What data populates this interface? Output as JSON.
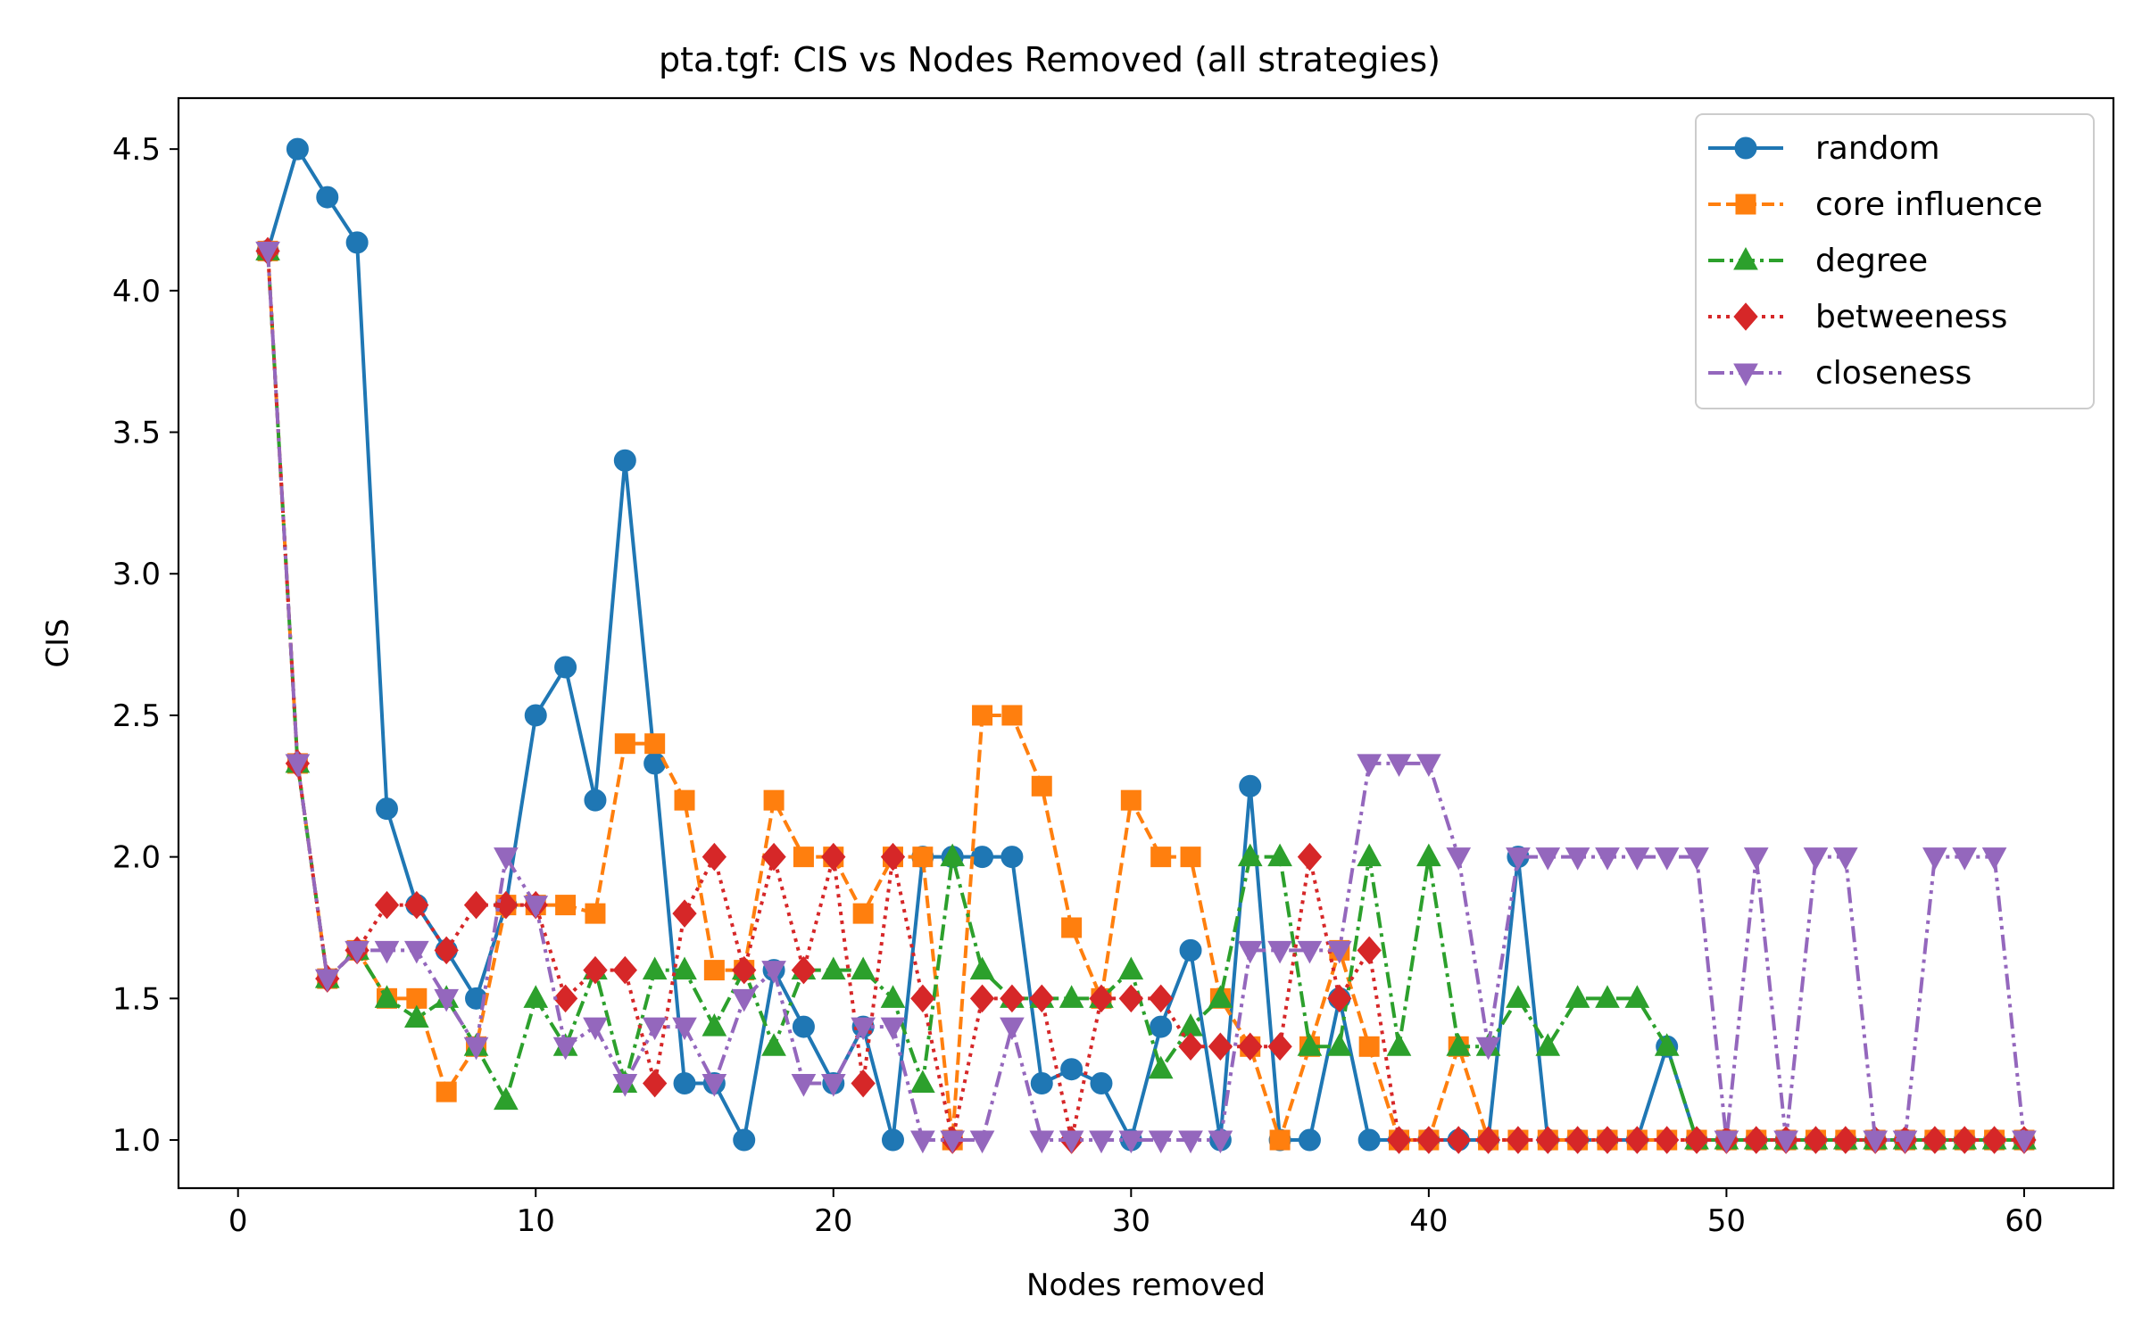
{
  "chart_data": {
    "type": "line",
    "title": "pta.tgf: CIS vs Nodes Removed (all strategies)",
    "xlabel": "Nodes removed",
    "ylabel": "CIS",
    "xlim": [
      -2,
      63
    ],
    "ylim": [
      0.83,
      4.68
    ],
    "xticks": [
      0,
      10,
      20,
      30,
      40,
      50,
      60
    ],
    "yticks": [
      1.0,
      1.5,
      2.0,
      2.5,
      3.0,
      3.5,
      4.0,
      4.5
    ],
    "ytick_labels": [
      "1.0",
      "1.5",
      "2.0",
      "2.5",
      "3.0",
      "3.5",
      "4.0",
      "4.5"
    ],
    "grid": false,
    "legend_position": "top-right",
    "x": [
      1,
      2,
      3,
      4,
      5,
      6,
      7,
      8,
      9,
      10,
      11,
      12,
      13,
      14,
      15,
      16,
      17,
      18,
      19,
      20,
      21,
      22,
      23,
      24,
      25,
      26,
      27,
      28,
      29,
      30,
      31,
      32,
      33,
      34,
      35,
      36,
      37,
      38,
      39,
      40,
      41,
      42,
      43,
      44,
      45,
      46,
      47,
      48,
      49,
      50,
      51,
      52,
      53,
      54,
      55,
      56,
      57,
      58,
      59,
      60
    ],
    "series": [
      {
        "name": "random",
        "color": "#1f77b4",
        "marker": "circle",
        "dash": "solid",
        "values": [
          4.14,
          4.5,
          4.33,
          4.17,
          2.17,
          1.83,
          1.67,
          1.5,
          1.83,
          2.5,
          2.67,
          2.2,
          3.4,
          2.33,
          1.2,
          1.2,
          1.0,
          1.6,
          1.4,
          1.2,
          1.4,
          1.0,
          2.0,
          2.0,
          2.0,
          2.0,
          1.2,
          1.25,
          1.2,
          1.0,
          1.4,
          1.67,
          1.0,
          2.25,
          1.0,
          1.0,
          1.5,
          1.0,
          1.0,
          1.0,
          1.0,
          1.0,
          2.0,
          1.0,
          1.0,
          1.0,
          1.0,
          1.33,
          1.0,
          1.0,
          1.0,
          1.0,
          1.0,
          1.0,
          1.0,
          1.0,
          1.0,
          1.0,
          1.0,
          1.0
        ]
      },
      {
        "name": "core influence",
        "color": "#ff7f0e",
        "marker": "square",
        "dash": "dashed",
        "values": [
          4.14,
          2.33,
          1.57,
          1.67,
          1.5,
          1.5,
          1.17,
          1.33,
          1.83,
          1.83,
          1.83,
          1.8,
          2.4,
          2.4,
          2.2,
          1.6,
          1.6,
          2.2,
          2.0,
          2.0,
          1.8,
          2.0,
          2.0,
          1.0,
          2.5,
          2.5,
          2.25,
          1.75,
          1.5,
          2.2,
          2.0,
          2.0,
          1.5,
          1.33,
          1.0,
          1.33,
          1.67,
          1.33,
          1.0,
          1.0,
          1.33,
          1.0,
          1.0,
          1.0,
          1.0,
          1.0,
          1.0,
          1.0,
          1.0,
          1.0,
          1.0,
          1.0,
          1.0,
          1.0,
          1.0,
          1.0,
          1.0,
          1.0,
          1.0,
          1.0
        ]
      },
      {
        "name": "degree",
        "color": "#2ca02c",
        "marker": "triangle-up",
        "dash": "dashdot",
        "values": [
          4.14,
          2.33,
          1.57,
          1.67,
          1.5,
          1.43,
          1.5,
          1.33,
          1.14,
          1.5,
          1.33,
          1.6,
          1.2,
          1.6,
          1.6,
          1.4,
          1.6,
          1.33,
          1.6,
          1.6,
          1.6,
          1.5,
          1.2,
          2.0,
          1.6,
          1.5,
          1.5,
          1.5,
          1.5,
          1.6,
          1.25,
          1.4,
          1.5,
          2.0,
          2.0,
          1.33,
          1.33,
          2.0,
          1.33,
          2.0,
          1.33,
          1.33,
          1.5,
          1.33,
          1.5,
          1.5,
          1.5,
          1.33,
          1.0,
          1.0,
          1.0,
          1.0,
          1.0,
          1.0,
          1.0,
          1.0,
          1.0,
          1.0,
          1.0,
          1.0
        ]
      },
      {
        "name": "betweeness",
        "color": "#d62728",
        "marker": "diamond",
        "dash": "dotted",
        "values": [
          4.14,
          2.33,
          1.57,
          1.67,
          1.83,
          1.83,
          1.67,
          1.83,
          1.83,
          1.83,
          1.5,
          1.6,
          1.6,
          1.2,
          1.8,
          2.0,
          1.6,
          2.0,
          1.6,
          2.0,
          1.2,
          2.0,
          1.5,
          1.0,
          1.5,
          1.5,
          1.5,
          1.0,
          1.5,
          1.5,
          1.5,
          1.33,
          1.33,
          1.33,
          1.33,
          2.0,
          1.5,
          1.67,
          1.0,
          1.0,
          1.0,
          1.0,
          1.0,
          1.0,
          1.0,
          1.0,
          1.0,
          1.0,
          1.0,
          1.0,
          1.0,
          1.0,
          1.0,
          1.0,
          1.0,
          1.0,
          1.0,
          1.0,
          1.0,
          1.0
        ]
      },
      {
        "name": "closeness",
        "color": "#9467bd",
        "marker": "triangle-down",
        "dash": "dashdotdot",
        "values": [
          4.14,
          2.33,
          1.57,
          1.67,
          1.67,
          1.67,
          1.5,
          1.33,
          2.0,
          1.83,
          1.33,
          1.4,
          1.2,
          1.4,
          1.4,
          1.2,
          1.5,
          1.6,
          1.2,
          1.2,
          1.4,
          1.4,
          1.0,
          1.0,
          1.0,
          1.4,
          1.0,
          1.0,
          1.0,
          1.0,
          1.0,
          1.0,
          1.0,
          1.67,
          1.67,
          1.67,
          1.67,
          2.33,
          2.33,
          2.33,
          2.0,
          1.33,
          2.0,
          2.0,
          2.0,
          2.0,
          2.0,
          2.0,
          2.0,
          1.0,
          2.0,
          1.0,
          2.0,
          2.0,
          1.0,
          1.0,
          2.0,
          2.0,
          2.0,
          1.0
        ]
      }
    ]
  }
}
